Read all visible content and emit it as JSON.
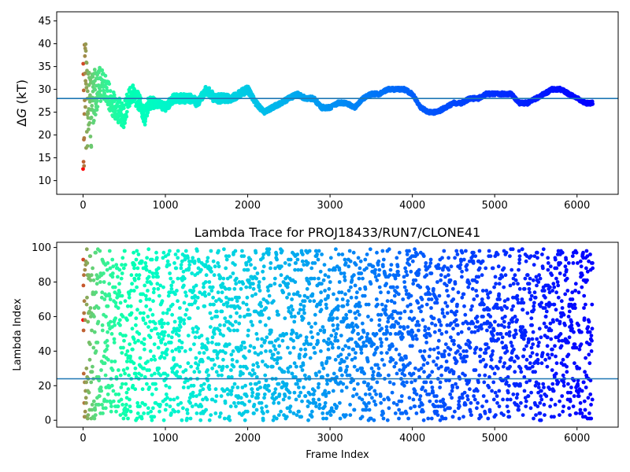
{
  "chart_data": [
    {
      "type": "scatter",
      "title": "",
      "xlabel": "",
      "ylabel": "ΔG (kT)",
      "ylabel_prefix": "Δ",
      "ylabel_var": "G",
      "ylabel_units": " (kT)",
      "xlim": [
        -320,
        6500
      ],
      "ylim": [
        7,
        47
      ],
      "xticks": [
        0,
        1000,
        2000,
        3000,
        4000,
        5000,
        6000
      ],
      "xtick_labels": [
        "0",
        "1000",
        "2000",
        "3000",
        "4000",
        "5000",
        "6000"
      ],
      "yticks": [
        10,
        15,
        20,
        25,
        30,
        35,
        40,
        45
      ],
      "ytick_labels": [
        "10",
        "15",
        "20",
        "25",
        "30",
        "35",
        "40",
        "45"
      ],
      "hline": 28,
      "hline_color": "#1f77b4",
      "n_frames": 6200,
      "colormap": "rainbow-reversed",
      "series": [
        {
          "x": [
            0,
            20,
            40,
            60,
            80,
            100,
            130,
            160,
            200,
            250,
            300,
            350,
            400,
            450,
            500,
            550,
            600,
            650,
            700,
            750,
            800,
            900,
            1000,
            1100,
            1200,
            1300,
            1400,
            1500,
            1600,
            1700,
            1800,
            1900,
            2000,
            2100,
            2200,
            2300,
            2400,
            2500,
            2600,
            2700,
            2800,
            2900,
            3000,
            3100,
            3200,
            3300,
            3400,
            3500,
            3600,
            3700,
            3800,
            3900,
            4000,
            4100,
            4200,
            4300,
            4400,
            4500,
            4600,
            4700,
            4800,
            4900,
            5000,
            5100,
            5200,
            5300,
            5400,
            5500,
            5600,
            5700,
            5800,
            5900,
            6000,
            6100,
            6190
          ],
          "y": [
            20,
            30,
            28,
            26,
            27,
            25,
            28,
            30,
            31,
            31,
            29,
            27,
            26,
            25,
            24,
            28,
            29,
            28,
            27,
            24,
            27,
            27,
            26,
            28,
            28,
            28,
            27,
            30,
            28,
            28,
            28,
            29,
            30,
            27,
            25,
            26,
            27,
            28,
            29,
            28,
            28,
            26,
            26,
            27,
            27,
            26,
            28,
            29,
            29,
            30,
            30,
            30,
            29,
            26,
            25,
            25,
            26,
            27,
            27,
            28,
            28,
            29,
            29,
            29,
            29,
            27,
            27,
            28,
            29,
            30,
            30,
            29,
            28,
            27,
            27
          ],
          "spread": [
            15,
            12,
            11,
            10,
            9,
            8,
            6,
            5,
            4,
            3,
            3,
            3,
            3,
            3,
            3,
            2,
            2,
            2,
            2,
            2,
            1.5,
            1,
            1,
            1,
            1,
            1,
            1,
            1,
            1,
            1,
            0.8,
            0.8,
            0.8,
            0.6,
            0.5,
            0.5,
            0.5,
            0.5,
            0.5,
            0.5,
            0.5,
            0.5,
            0.4,
            0.4,
            0.4,
            0.4,
            0.4,
            0.4,
            0.4,
            0.4,
            0.4,
            0.4,
            0.4,
            0.4,
            0.4,
            0.4,
            0.4,
            0.4,
            0.4,
            0.4,
            0.4,
            0.4,
            0.4,
            0.4,
            0.4,
            0.4,
            0.4,
            0.4,
            0.4,
            0.4,
            0.4,
            0.4,
            0.4,
            0.4,
            0.4
          ]
        }
      ]
    },
    {
      "type": "scatter",
      "title": "Lambda Trace for PROJ18433/RUN7/CLONE41",
      "xlabel": "Frame Index",
      "ylabel": "Lambda Index",
      "xlim": [
        -320,
        6500
      ],
      "ylim": [
        -4,
        103
      ],
      "xticks": [
        0,
        1000,
        2000,
        3000,
        4000,
        5000,
        6000
      ],
      "xtick_labels": [
        "0",
        "1000",
        "2000",
        "3000",
        "4000",
        "5000",
        "6000"
      ],
      "yticks": [
        0,
        20,
        40,
        60,
        80,
        100
      ],
      "ytick_labels": [
        "0",
        "20",
        "40",
        "60",
        "80",
        "100"
      ],
      "hline": 24,
      "hline_color": "#1f77b4",
      "n_frames": 6200,
      "lambda_range": [
        0,
        99
      ],
      "colormap": "rainbow-reversed"
    }
  ]
}
